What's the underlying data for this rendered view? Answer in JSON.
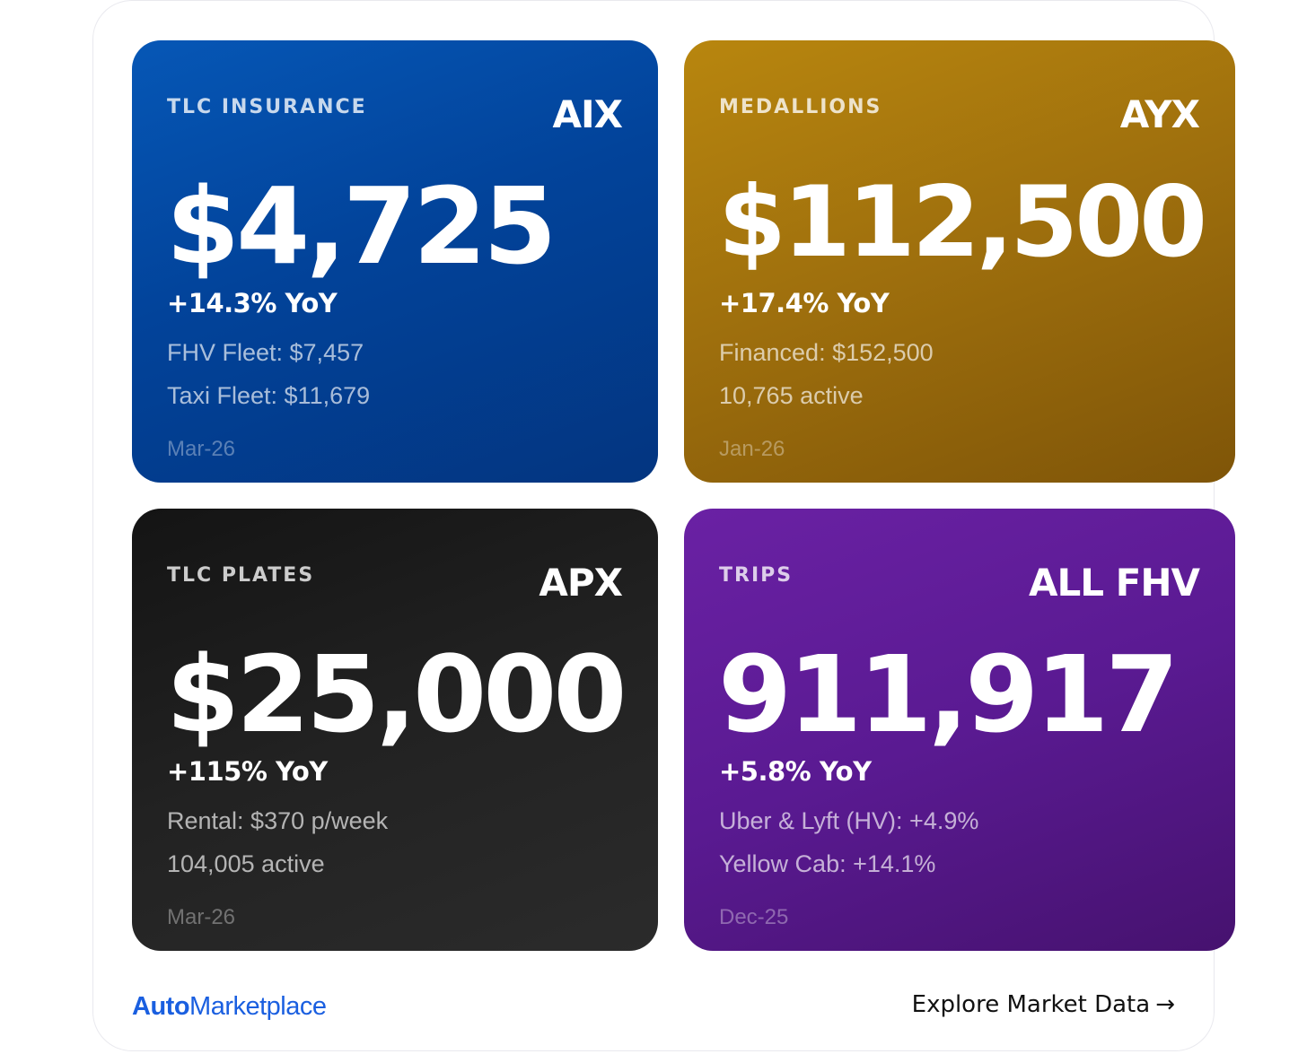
{
  "cards": [
    {
      "category": "TLC INSURANCE",
      "ticker": "AIX",
      "value": "$4,725",
      "change": "+14.3% YoY",
      "details": [
        "FHV Fleet: $7,457",
        "Taxi Fleet: $11,679"
      ],
      "date": "Mar-26",
      "color": "#0250a8"
    },
    {
      "category": "MEDALLIONS",
      "ticker": "AYX",
      "value": "$112,500",
      "change": "+17.4% YoY",
      "details": [
        "Financed: $152,500",
        "10,765 active"
      ],
      "date": "Jan-26",
      "color": "#9d6e0d"
    },
    {
      "category": "TLC PLATES",
      "ticker": "APX",
      "value": "$25,000",
      "change": "+115% YoY",
      "details": [
        "Rental: $370 p/week",
        "104,005 active"
      ],
      "date": "Mar-26",
      "color": "#1e1e1e"
    },
    {
      "category": "TRIPS",
      "ticker": "ALL FHV",
      "value": "911,917",
      "change": "+5.8% YoY",
      "details": [
        "Uber & Lyft (HV): +4.9%",
        "Yellow Cab: +14.1%"
      ],
      "date": "Dec-25",
      "color": "#5a1a92"
    }
  ],
  "footer": {
    "logo_bold": "Auto",
    "logo_regular": "Marketplace",
    "logo_color": "#1a5fe0",
    "explore_label": "Explore Market Data",
    "explore_arrow": "→"
  }
}
